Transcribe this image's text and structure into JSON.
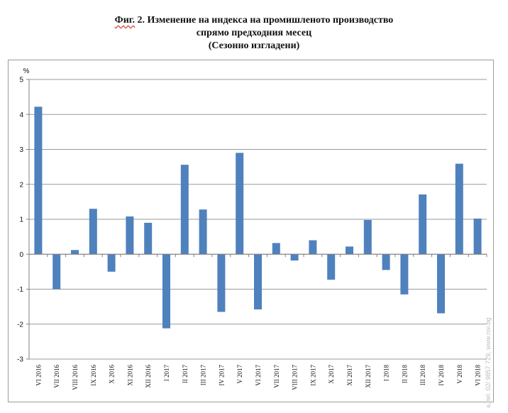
{
  "title": {
    "prefix": "Фиг.",
    "line1_rest": " 2. Изменение на индекса на промишленото производство",
    "line2": "спрямо предходния месец",
    "line3": "(Сезонно изгладени)"
  },
  "watermark": "a, tel. 02/ 9857 729, www.nsi.bg",
  "colors": {
    "bar": "#4f81bd",
    "grid": "#9a9a9a",
    "axis": "#808080",
    "text": "#111111"
  },
  "chart_data": {
    "type": "bar",
    "ylabel": "%",
    "ylim": [
      -3,
      5
    ],
    "yticks": [
      -3,
      -2,
      -1,
      0,
      1,
      2,
      3,
      4,
      5
    ],
    "grid": true,
    "legend": "none",
    "categories": [
      "VI 2016",
      "VII 2016",
      "VIII 2016",
      "IX 2016",
      "X 2016",
      "XI 2016",
      "XII 2016",
      "I 2017",
      "II 2017",
      "III 2017",
      "IV 2017",
      "V 2017",
      "VI 2017",
      "VII 2017",
      "VIII 2017",
      "IX 2017",
      "X 2017",
      "XI 2017",
      "XII 2017",
      "I 2018",
      "II 2018",
      "III 2018",
      "IV 2018",
      "V 2018",
      "VI 2018"
    ],
    "values": [
      4.22,
      -1.0,
      0.12,
      1.3,
      -0.5,
      1.08,
      0.9,
      -2.12,
      2.56,
      1.28,
      -1.65,
      2.9,
      -1.58,
      0.32,
      -0.18,
      0.4,
      -0.73,
      0.22,
      0.98,
      -0.45,
      -1.15,
      1.71,
      -1.69,
      2.59,
      1.02
    ]
  }
}
